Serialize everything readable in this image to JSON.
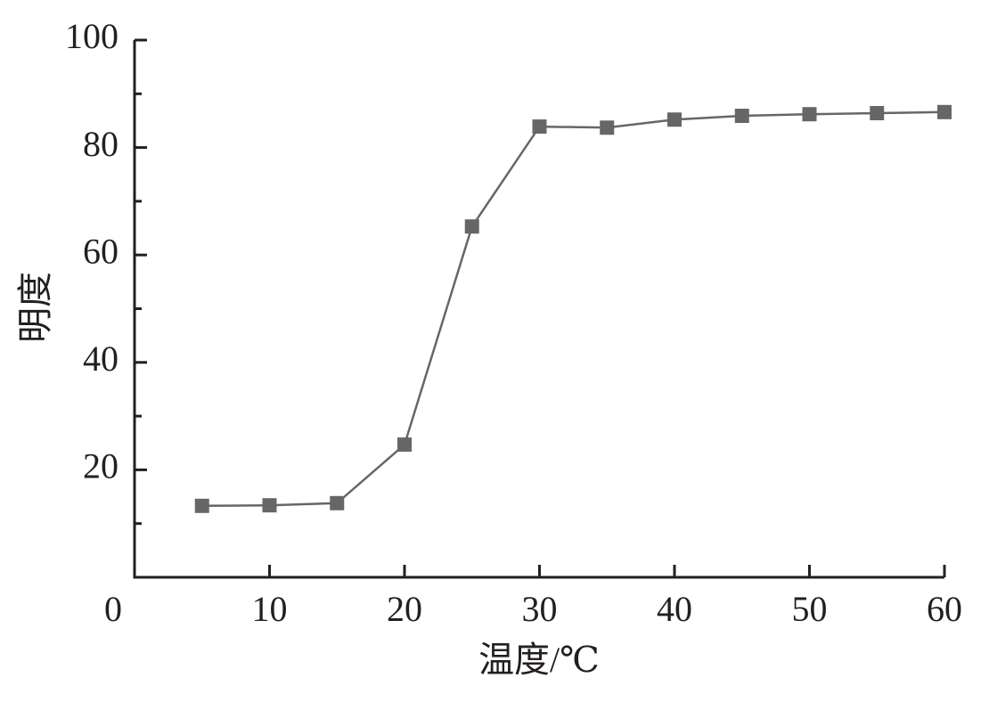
{
  "chart_data": {
    "type": "line",
    "x_label": "温度/℃",
    "y_label": "明度",
    "x": [
      5,
      10,
      15,
      20,
      25,
      30,
      35,
      40,
      45,
      50,
      55,
      60
    ],
    "series": [
      {
        "color": "#666666",
        "values": [
          13.3,
          13.4,
          13.8,
          24.7,
          65.3,
          83.9,
          83.7,
          85.2,
          85.9,
          86.2,
          86.4,
          86.6
        ]
      }
    ],
    "xlim": [
      0,
      60
    ],
    "xticks": [
      0,
      10,
      20,
      30,
      40,
      50,
      60
    ],
    "ylim": [
      0,
      100
    ],
    "yticks": [
      20,
      40,
      60,
      80,
      100
    ],
    "marker": "square"
  }
}
